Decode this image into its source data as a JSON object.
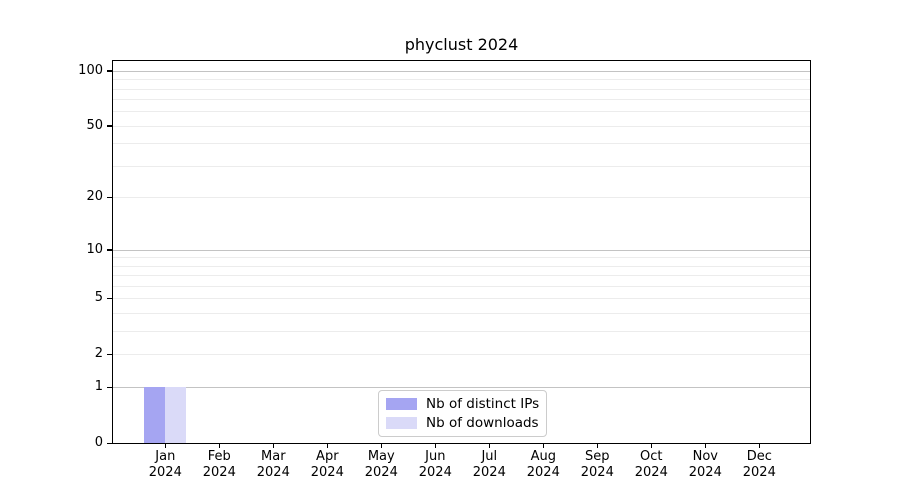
{
  "chart_data": {
    "type": "bar",
    "title": "phyclust 2024",
    "xlabel": "",
    "ylabel": "",
    "categories": [
      "Jan",
      "Feb",
      "Mar",
      "Apr",
      "May",
      "Jun",
      "Jul",
      "Aug",
      "Sep",
      "Oct",
      "Nov",
      "Dec"
    ],
    "x_tick_year_line": "2024",
    "series": [
      {
        "name": "Nb of distinct IPs",
        "color": "#a5a5f2",
        "values": [
          1,
          0,
          0,
          0,
          0,
          0,
          0,
          0,
          0,
          0,
          0,
          0
        ]
      },
      {
        "name": "Nb of downloads",
        "color": "#dadaf8",
        "values": [
          1,
          0,
          0,
          0,
          0,
          0,
          0,
          0,
          0,
          0,
          0,
          0
        ]
      }
    ],
    "y_scale": "log10(value+1)",
    "y_axis_max": 113,
    "y_ticks": [
      0,
      1,
      2,
      5,
      10,
      20,
      50,
      100
    ],
    "major_grid_values": [
      1,
      10,
      100
    ],
    "minor_grid_values": [
      2,
      3,
      4,
      5,
      6,
      7,
      8,
      9,
      20,
      30,
      40,
      50,
      60,
      70,
      80,
      90
    ],
    "grid": true,
    "legend_position": "lower center",
    "colors": {
      "major_grid": "#c3c3c3",
      "minor_grid": "#ececec",
      "spine": "#000000",
      "legend_border": "#cccccc",
      "background": "#ffffff"
    }
  }
}
